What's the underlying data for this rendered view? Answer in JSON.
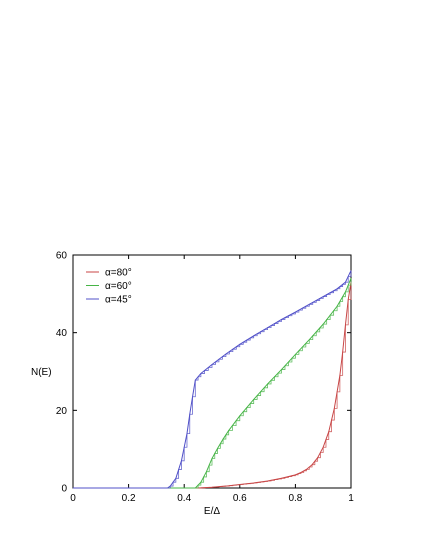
{
  "chart_data": {
    "type": "line",
    "title": "",
    "xlabel": "E/Δ",
    "ylabel": "N(E)",
    "xlim": [
      0,
      1
    ],
    "ylim": [
      0,
      60
    ],
    "xticks": [
      0,
      0.2,
      0.4,
      0.6,
      0.8,
      1
    ],
    "xtick_labels": [
      "0",
      "0.2",
      "0.4",
      "0.6",
      "0.8",
      "1"
    ],
    "yticks": [
      0,
      20,
      40,
      60
    ],
    "ytick_labels": [
      "0",
      "20",
      "40",
      "60"
    ],
    "grid": false,
    "legend_position": "top-left",
    "series": [
      {
        "name": "α=80°",
        "color": "#c84646",
        "x": [
          0,
          0.45,
          0.5,
          0.55,
          0.6,
          0.65,
          0.7,
          0.75,
          0.8,
          0.82,
          0.84,
          0.86,
          0.88,
          0.9,
          0.92,
          0.94,
          0.96,
          0.97,
          0.98,
          0.99,
          1.0
        ],
        "y": [
          0,
          0,
          0.2,
          0.5,
          0.9,
          1.3,
          1.8,
          2.5,
          3.4,
          4.0,
          4.8,
          6.0,
          7.8,
          10.5,
          14.5,
          20.5,
          29,
          35,
          42,
          48.5,
          53
        ]
      },
      {
        "name": "α=60°",
        "color": "#46b446",
        "x": [
          0,
          0.44,
          0.46,
          0.48,
          0.5,
          0.52,
          0.54,
          0.56,
          0.6,
          0.65,
          0.7,
          0.75,
          0.8,
          0.85,
          0.9,
          0.95,
          0.98,
          1.0
        ],
        "y": [
          0,
          0,
          1.5,
          4.2,
          7.6,
          10.2,
          12.6,
          14.8,
          18.6,
          22.8,
          26.8,
          30.5,
          34.4,
          38.2,
          42.2,
          46.8,
          50.5,
          54
        ]
      },
      {
        "name": "α=45°",
        "color": "#5050c8",
        "x": [
          0,
          0.34,
          0.35,
          0.37,
          0.39,
          0.41,
          0.42,
          0.43,
          0.44,
          0.46,
          0.5,
          0.55,
          0.6,
          0.65,
          0.7,
          0.75,
          0.8,
          0.85,
          0.9,
          0.95,
          0.98,
          1.0
        ],
        "y": [
          0,
          0,
          0.5,
          2.5,
          7,
          14,
          19,
          23.5,
          27.8,
          29.5,
          31.8,
          34.5,
          37,
          39.2,
          41.3,
          43.4,
          45.3,
          47.3,
          49.3,
          51.3,
          53,
          56
        ]
      }
    ]
  }
}
